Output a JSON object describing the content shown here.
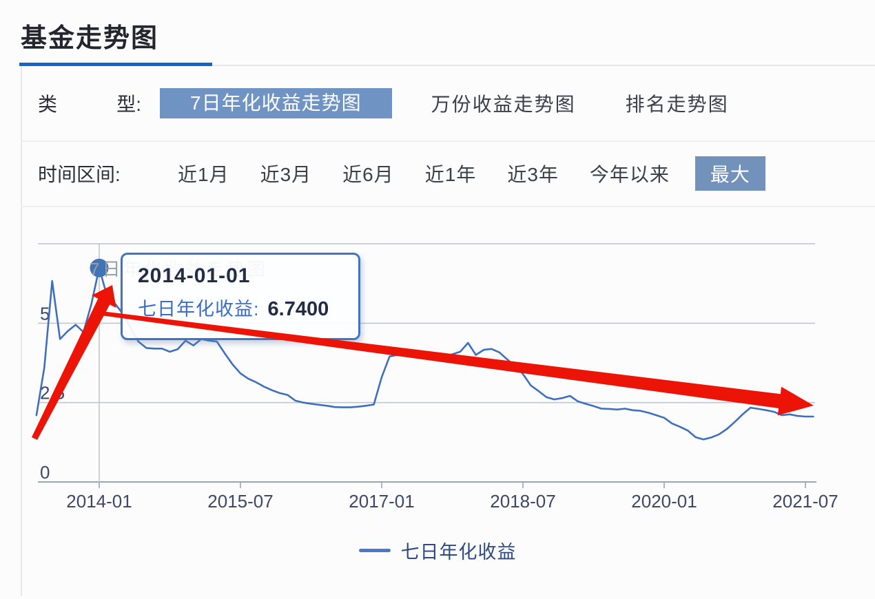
{
  "page": {
    "title": "基金走势图"
  },
  "type_row": {
    "label_left": "类",
    "label_right": "型:",
    "tabs": [
      {
        "label": "7日年化收益走势图",
        "active": true
      },
      {
        "label": "万份收益走势图",
        "active": false
      },
      {
        "label": "排名走势图",
        "active": false
      }
    ]
  },
  "time_row": {
    "label": "时间区间:",
    "options": [
      {
        "label": "近1月",
        "active": false
      },
      {
        "label": "近3月",
        "active": false
      },
      {
        "label": "近6月",
        "active": false
      },
      {
        "label": "近1年",
        "active": false
      },
      {
        "label": "近3年",
        "active": false
      },
      {
        "label": "今年以来",
        "active": false
      },
      {
        "label": "最大",
        "active": true
      }
    ]
  },
  "tooltip": {
    "date": "2014-01-01",
    "series_label": "七日年化收益:",
    "value": "6.7400"
  },
  "legend": {
    "label": "七日年化收益"
  },
  "colors": {
    "title_underline": "#1166cc",
    "tab_active_bg": "#6f93c2",
    "range_active_bg": "#7392bb",
    "line": "#3d6fbd",
    "marker": "#4173b5",
    "grid": "#c2c6ce",
    "axis": "#93a6ba",
    "axis_label": "#3e4766",
    "chart_title_gray": "#989ea8",
    "tooltip_border": "#3f74c2",
    "arrow_red": "#ec1407",
    "legend_dash": "#4a7ac6",
    "legend_text": "#2e4a82"
  },
  "chart_data": {
    "type": "line",
    "title": "7日年化收益走势图",
    "grid": true,
    "legend_position": "bottom",
    "ylim": [
      0,
      7.5
    ],
    "y_ticks": [
      0,
      2.5,
      5
    ],
    "y_gridlines": [
      2.5,
      5,
      7.5
    ],
    "x_tick_labels": [
      "2014-01",
      "2015-07",
      "2017-01",
      "2018-07",
      "2020-01",
      "2021-07"
    ],
    "highlight": {
      "date": "2014-01",
      "value": 6.74
    },
    "series": [
      {
        "name": "七日年化收益",
        "points": [
          [
            "2013-05",
            2.1
          ],
          [
            "2013-06",
            3.6
          ],
          [
            "2013-07",
            6.33
          ],
          [
            "2013-08",
            4.5
          ],
          [
            "2013-09",
            4.75
          ],
          [
            "2013-10",
            4.95
          ],
          [
            "2013-11",
            4.72
          ],
          [
            "2013-12",
            5.6
          ],
          [
            "2014-01",
            6.74
          ],
          [
            "2014-02",
            5.85
          ],
          [
            "2014-03",
            5.62
          ],
          [
            "2014-04",
            5.3
          ],
          [
            "2014-05",
            4.85
          ],
          [
            "2014-06",
            4.42
          ],
          [
            "2014-07",
            4.22
          ],
          [
            "2014-08",
            4.2
          ],
          [
            "2014-09",
            4.2
          ],
          [
            "2014-10",
            4.1
          ],
          [
            "2014-11",
            4.18
          ],
          [
            "2014-12",
            4.45
          ],
          [
            "2015-01",
            4.3
          ],
          [
            "2015-02",
            4.5
          ],
          [
            "2015-03",
            4.45
          ],
          [
            "2015-04",
            4.42
          ],
          [
            "2015-05",
            4.05
          ],
          [
            "2015-06",
            3.7
          ],
          [
            "2015-07",
            3.42
          ],
          [
            "2015-08",
            3.25
          ],
          [
            "2015-09",
            3.14
          ],
          [
            "2015-10",
            3.0
          ],
          [
            "2015-11",
            2.89
          ],
          [
            "2015-12",
            2.8
          ],
          [
            "2016-01",
            2.74
          ],
          [
            "2016-02",
            2.56
          ],
          [
            "2016-03",
            2.5
          ],
          [
            "2016-04",
            2.46
          ],
          [
            "2016-05",
            2.43
          ],
          [
            "2016-06",
            2.4
          ],
          [
            "2016-07",
            2.36
          ],
          [
            "2016-08",
            2.35
          ],
          [
            "2016-09",
            2.35
          ],
          [
            "2016-10",
            2.37
          ],
          [
            "2016-11",
            2.4
          ],
          [
            "2016-12",
            2.44
          ],
          [
            "2017-01",
            3.3
          ],
          [
            "2017-02",
            3.95
          ],
          [
            "2017-03",
            4.0
          ],
          [
            "2017-04",
            4.05
          ],
          [
            "2017-05",
            4.08
          ],
          [
            "2017-06",
            4.02
          ],
          [
            "2017-07",
            4.0
          ],
          [
            "2017-08",
            3.98
          ],
          [
            "2017-09",
            3.94
          ],
          [
            "2017-10",
            4.02
          ],
          [
            "2017-11",
            4.1
          ],
          [
            "2017-12",
            4.38
          ],
          [
            "2018-01",
            4.0
          ],
          [
            "2018-02",
            4.16
          ],
          [
            "2018-03",
            4.19
          ],
          [
            "2018-04",
            4.08
          ],
          [
            "2018-05",
            3.86
          ],
          [
            "2018-06",
            3.65
          ],
          [
            "2018-07",
            3.4
          ],
          [
            "2018-08",
            3.04
          ],
          [
            "2018-09",
            2.86
          ],
          [
            "2018-10",
            2.67
          ],
          [
            "2018-11",
            2.6
          ],
          [
            "2018-12",
            2.64
          ],
          [
            "2019-01",
            2.71
          ],
          [
            "2019-02",
            2.54
          ],
          [
            "2019-03",
            2.46
          ],
          [
            "2019-04",
            2.39
          ],
          [
            "2019-05",
            2.31
          ],
          [
            "2019-06",
            2.3
          ],
          [
            "2019-07",
            2.28
          ],
          [
            "2019-08",
            2.31
          ],
          [
            "2019-09",
            2.26
          ],
          [
            "2019-10",
            2.24
          ],
          [
            "2019-11",
            2.18
          ],
          [
            "2019-12",
            2.1
          ],
          [
            "2020-01",
            2.02
          ],
          [
            "2020-02",
            1.84
          ],
          [
            "2020-03",
            1.74
          ],
          [
            "2020-04",
            1.62
          ],
          [
            "2020-05",
            1.41
          ],
          [
            "2020-06",
            1.34
          ],
          [
            "2020-07",
            1.4
          ],
          [
            "2020-08",
            1.5
          ],
          [
            "2020-09",
            1.67
          ],
          [
            "2020-10",
            1.89
          ],
          [
            "2020-11",
            2.13
          ],
          [
            "2020-12",
            2.34
          ],
          [
            "2021-01",
            2.3
          ],
          [
            "2021-02",
            2.26
          ],
          [
            "2021-03",
            2.21
          ],
          [
            "2021-04",
            2.1
          ],
          [
            "2021-05",
            2.13
          ],
          [
            "2021-06",
            2.08
          ],
          [
            "2021-07",
            2.06
          ],
          [
            "2021-08",
            2.06
          ]
        ]
      }
    ]
  },
  "annotations": {
    "arrows": [
      {
        "name": "arrow-up-to-peak",
        "from": [
          50,
          637
        ],
        "to": [
          163,
          414
        ],
        "shaft_start_width": 9,
        "shaft_end_width": 19,
        "head_length": 27,
        "head_width": 40
      },
      {
        "name": "arrow-trend-down",
        "from": [
          147,
          455
        ],
        "to": [
          1181,
          589
        ],
        "shaft_start_width": 6,
        "shaft_end_width": 21,
        "head_length": 50,
        "head_width": 42
      }
    ]
  }
}
